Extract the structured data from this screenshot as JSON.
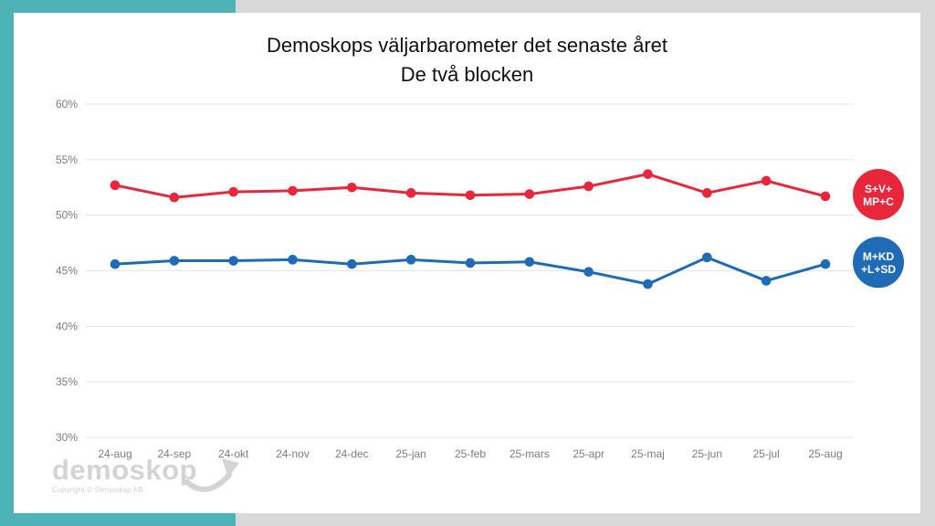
{
  "frame": {
    "accent_color": "#4db3b7",
    "background_color": "#d8d8d8",
    "card_color": "#ffffff"
  },
  "title": {
    "line1": "Demoskops väljarbarometer det senaste året",
    "line2": "De två blocken"
  },
  "logo": {
    "text": "demoskop",
    "copyright": "Copyright © Demoskop AB"
  },
  "chart_data": {
    "type": "line",
    "title": "Demoskops väljarbarometer det senaste året — De två blocken",
    "categories": [
      "24-aug",
      "24-sep",
      "24-okt",
      "24-nov",
      "24-dec",
      "25-jan",
      "25-feb",
      "25-mars",
      "25-apr",
      "25-maj",
      "25-jun",
      "25-jul",
      "25-aug"
    ],
    "series": [
      {
        "name": "S+V+MP+C",
        "badge_lines": [
          "S+V+",
          "MP+C"
        ],
        "color": "#e8273c",
        "values": [
          52.7,
          51.6,
          52.1,
          52.2,
          52.5,
          52.0,
          51.8,
          51.9,
          52.6,
          53.7,
          52.0,
          53.1,
          51.7
        ]
      },
      {
        "name": "M+KD+L+SD",
        "badge_lines": [
          "M+KD",
          "+L+SD"
        ],
        "color": "#1f6bb5",
        "values": [
          45.6,
          45.9,
          45.9,
          46.0,
          45.6,
          46.0,
          45.7,
          45.8,
          44.9,
          43.8,
          46.2,
          44.1,
          45.6
        ]
      }
    ],
    "y_axis": {
      "min": 30,
      "max": 60,
      "tick_step": 5,
      "ticks": [
        60,
        55,
        50,
        45,
        40,
        35,
        30
      ],
      "tick_labels": [
        "60%",
        "55%",
        "50%",
        "45%",
        "40%",
        "35%",
        "30%"
      ]
    },
    "grid": true,
    "grid_color": "#e4e4e4",
    "axis_text_color": "#7c7c7c",
    "legend_position": "right"
  }
}
